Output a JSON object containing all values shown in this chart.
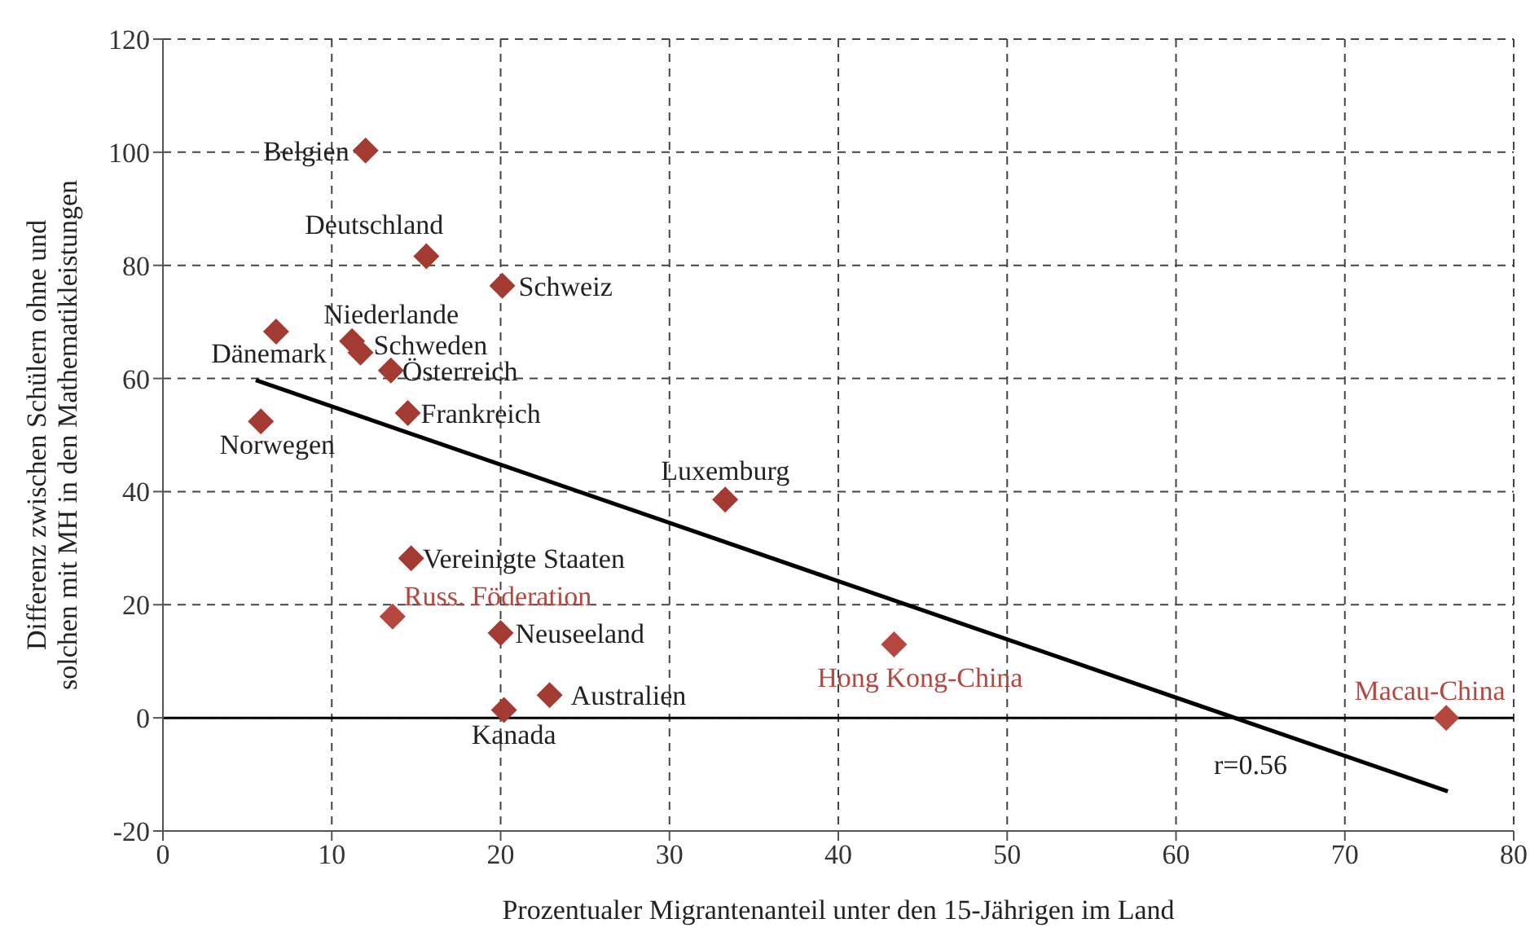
{
  "chart_data": {
    "type": "scatter",
    "xlabel": "Prozentualer Migrantenanteil unter den 15-Jährigen im Land",
    "ylabel": "Differenz zwischen Schülern ohne und solchen mit MH in den Mathematikleistungen",
    "xlim": [
      0,
      80
    ],
    "xticks": [
      0,
      10,
      20,
      30,
      40,
      50,
      60,
      70,
      80
    ],
    "ylim": [
      -20,
      120
    ],
    "yticks": [
      -20,
      0,
      20,
      40,
      60,
      80,
      100,
      120
    ],
    "grid": true,
    "legend": false,
    "marker": "diamond",
    "series": [
      {
        "color": "#a33b32",
        "x": [
          12.0,
          15.6,
          20.1,
          6.7,
          11.2,
          11.7,
          13.5,
          14.5,
          5.8,
          33.3,
          14.7,
          20.0,
          22.9,
          20.2
        ],
        "values": [
          100.3,
          81.6,
          76.4,
          68.3,
          66.6,
          64.6,
          61.4,
          53.9,
          52.4,
          38.6,
          28.2,
          15.0,
          4.0,
          1.4
        ]
      },
      {
        "color": "#b5473f",
        "x": [
          13.6,
          43.3,
          76.0
        ],
        "values": [
          17.9,
          13.0,
          0.0
        ]
      },
      {
        "type": "line",
        "color": "#000000",
        "marker": "none",
        "x": [
          5.5,
          76.1
        ],
        "values": [
          59.7,
          -13.0
        ]
      }
    ],
    "ref_lines": [
      {
        "axis": "y",
        "value": 0,
        "color": "#000000",
        "line_style": "solid"
      }
    ],
    "annotations": [
      {
        "text": "Belgien",
        "x": 12.0,
        "y": 100.3
      },
      {
        "text": "Deutschland",
        "x": 15.6,
        "y": 81.6
      },
      {
        "text": "Schweiz",
        "x": 20.1,
        "y": 76.4
      },
      {
        "text": "Dänemark",
        "x": 6.7,
        "y": 68.3
      },
      {
        "text": "Niederlande",
        "x": 11.2,
        "y": 66.6
      },
      {
        "text": "Schweden",
        "x": 11.7,
        "y": 64.6
      },
      {
        "text": "Österreich",
        "x": 13.5,
        "y": 61.4
      },
      {
        "text": "Frankreich",
        "x": 14.5,
        "y": 53.9
      },
      {
        "text": "Norwegen",
        "x": 5.8,
        "y": 52.4
      },
      {
        "text": "Luxemburg",
        "x": 33.3,
        "y": 38.6
      },
      {
        "text": "Vereinigte Staaten",
        "x": 14.7,
        "y": 28.2
      },
      {
        "text": "Neuseeland",
        "x": 20.0,
        "y": 15.0
      },
      {
        "text": "Australien",
        "x": 22.9,
        "y": 4.0
      },
      {
        "text": "Kanada",
        "x": 20.2,
        "y": 1.4
      },
      {
        "text": "Russ. Föderation",
        "x": 13.6,
        "y": 17.9
      },
      {
        "text": "Hong Kong-China",
        "x": 43.3,
        "y": 13.0
      },
      {
        "text": "Macau-China",
        "x": 76.0,
        "y": 0.0
      },
      "r=0.56"
    ]
  }
}
